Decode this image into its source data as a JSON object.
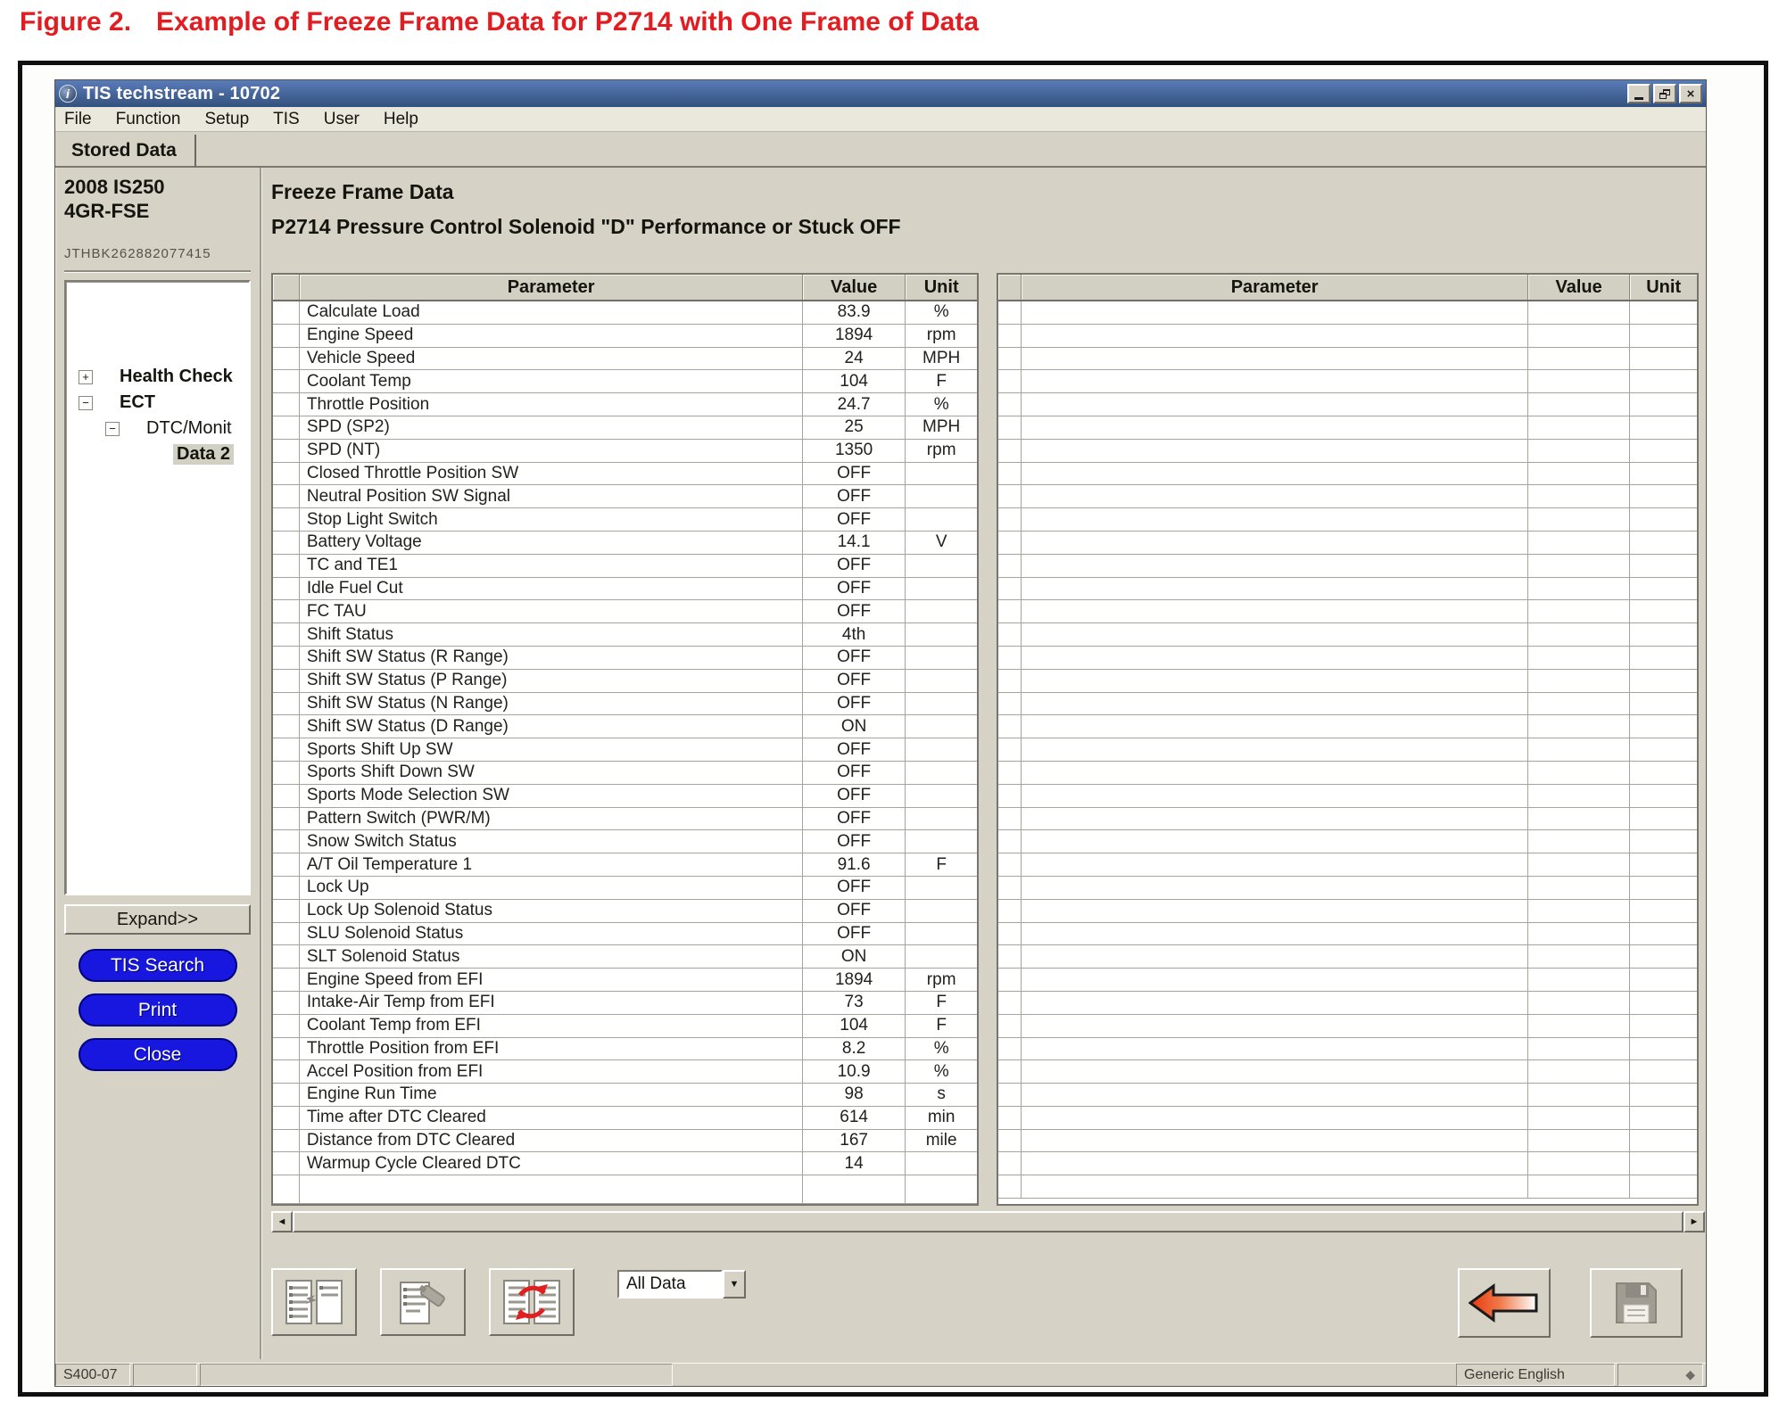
{
  "colors": {
    "caption_red": "#e11d22",
    "button_blue": "#1717df",
    "arrow_red": "#e8380d"
  },
  "figure": {
    "label": "Figure 2.",
    "text": "Example of Freeze Frame Data for P2714 with One Frame of Data"
  },
  "window": {
    "title": "TIS techstream - 10702",
    "app_icon_glyph": "i",
    "menu_items": [
      "File",
      "Function",
      "Setup",
      "TIS",
      "User",
      "Help"
    ],
    "tab": "Stored Data"
  },
  "icons": {
    "close": "×",
    "dropdown_arrow": "▼",
    "scroll_left": "◄",
    "scroll_right": "►",
    "diamond": "◆"
  },
  "sidebar": {
    "vehicle_line1": "2008 IS250",
    "vehicle_line2": "4GR-FSE",
    "vin": "JTHBK262882077415",
    "tree": [
      {
        "glyph": "+",
        "label": "Health Check",
        "indent": 0,
        "bold": true,
        "selected": false
      },
      {
        "glyph": "−",
        "label": "ECT",
        "indent": 0,
        "bold": true,
        "selected": false
      },
      {
        "glyph": "−",
        "label": "DTC/Monit",
        "indent": 1,
        "bold": false,
        "selected": false
      },
      {
        "glyph": "",
        "label": "Data 2",
        "indent": 2,
        "bold": true,
        "selected": true
      }
    ],
    "expand_button": "Expand>>",
    "buttons": [
      "TIS Search",
      "Print",
      "Close"
    ]
  },
  "main": {
    "heading": "Freeze Frame Data",
    "subheading": "P2714 Pressure Control Solenoid \"D\" Performance or Stuck OFF",
    "table_headers": {
      "parameter": "Parameter",
      "value": "Value",
      "unit": "Unit"
    },
    "rows": [
      {
        "p": "Calculate Load",
        "v": "83.9",
        "u": "%"
      },
      {
        "p": "Engine Speed",
        "v": "1894",
        "u": "rpm"
      },
      {
        "p": "Vehicle Speed",
        "v": "24",
        "u": "MPH"
      },
      {
        "p": "Coolant Temp",
        "v": "104",
        "u": "F"
      },
      {
        "p": "Throttle Position",
        "v": "24.7",
        "u": "%"
      },
      {
        "p": "SPD (SP2)",
        "v": "25",
        "u": "MPH"
      },
      {
        "p": "SPD (NT)",
        "v": "1350",
        "u": "rpm"
      },
      {
        "p": "Closed Throttle Position SW",
        "v": "OFF",
        "u": ""
      },
      {
        "p": "Neutral Position SW Signal",
        "v": "OFF",
        "u": ""
      },
      {
        "p": "Stop Light Switch",
        "v": "OFF",
        "u": ""
      },
      {
        "p": "Battery Voltage",
        "v": "14.1",
        "u": "V"
      },
      {
        "p": "TC and TE1",
        "v": "OFF",
        "u": ""
      },
      {
        "p": "Idle Fuel Cut",
        "v": "OFF",
        "u": ""
      },
      {
        "p": "FC TAU",
        "v": "OFF",
        "u": ""
      },
      {
        "p": "Shift Status",
        "v": "4th",
        "u": ""
      },
      {
        "p": "Shift SW Status (R Range)",
        "v": "OFF",
        "u": ""
      },
      {
        "p": "Shift SW Status (P Range)",
        "v": "OFF",
        "u": ""
      },
      {
        "p": "Shift SW Status (N Range)",
        "v": "OFF",
        "u": ""
      },
      {
        "p": "Shift SW Status (D Range)",
        "v": "ON",
        "u": ""
      },
      {
        "p": "Sports Shift Up SW",
        "v": "OFF",
        "u": ""
      },
      {
        "p": "Sports Shift Down SW",
        "v": "OFF",
        "u": ""
      },
      {
        "p": "Sports Mode Selection SW",
        "v": "OFF",
        "u": ""
      },
      {
        "p": "Pattern Switch (PWR/M)",
        "v": "OFF",
        "u": ""
      },
      {
        "p": "Snow Switch Status",
        "v": "OFF",
        "u": ""
      },
      {
        "p": "A/T Oil Temperature 1",
        "v": "91.6",
        "u": "F"
      },
      {
        "p": "Lock Up",
        "v": "OFF",
        "u": ""
      },
      {
        "p": "Lock Up Solenoid Status",
        "v": "OFF",
        "u": ""
      },
      {
        "p": "SLU Solenoid Status",
        "v": "OFF",
        "u": ""
      },
      {
        "p": "SLT Solenoid Status",
        "v": "ON",
        "u": ""
      },
      {
        "p": "Engine Speed from EFI",
        "v": "1894",
        "u": "rpm"
      },
      {
        "p": "Intake-Air Temp from EFI",
        "v": "73",
        "u": "F"
      },
      {
        "p": "Coolant Temp from EFI",
        "v": "104",
        "u": "F"
      },
      {
        "p": "Throttle Position from EFI",
        "v": "8.2",
        "u": "%"
      },
      {
        "p": "Accel Position from EFI",
        "v": "10.9",
        "u": "%"
      },
      {
        "p": "Engine Run Time",
        "v": "98",
        "u": "s"
      },
      {
        "p": "Time after DTC Cleared",
        "v": "614",
        "u": "min"
      },
      {
        "p": "Distance from DTC Cleared",
        "v": "167",
        "u": "mile"
      },
      {
        "p": "Warmup Cycle Cleared DTC",
        "v": "14",
        "u": ""
      }
    ],
    "right_table_empty_rows": 39,
    "dropdown_value": "All Data"
  },
  "status_bar": {
    "left": "S400-07",
    "language": "Generic English"
  }
}
